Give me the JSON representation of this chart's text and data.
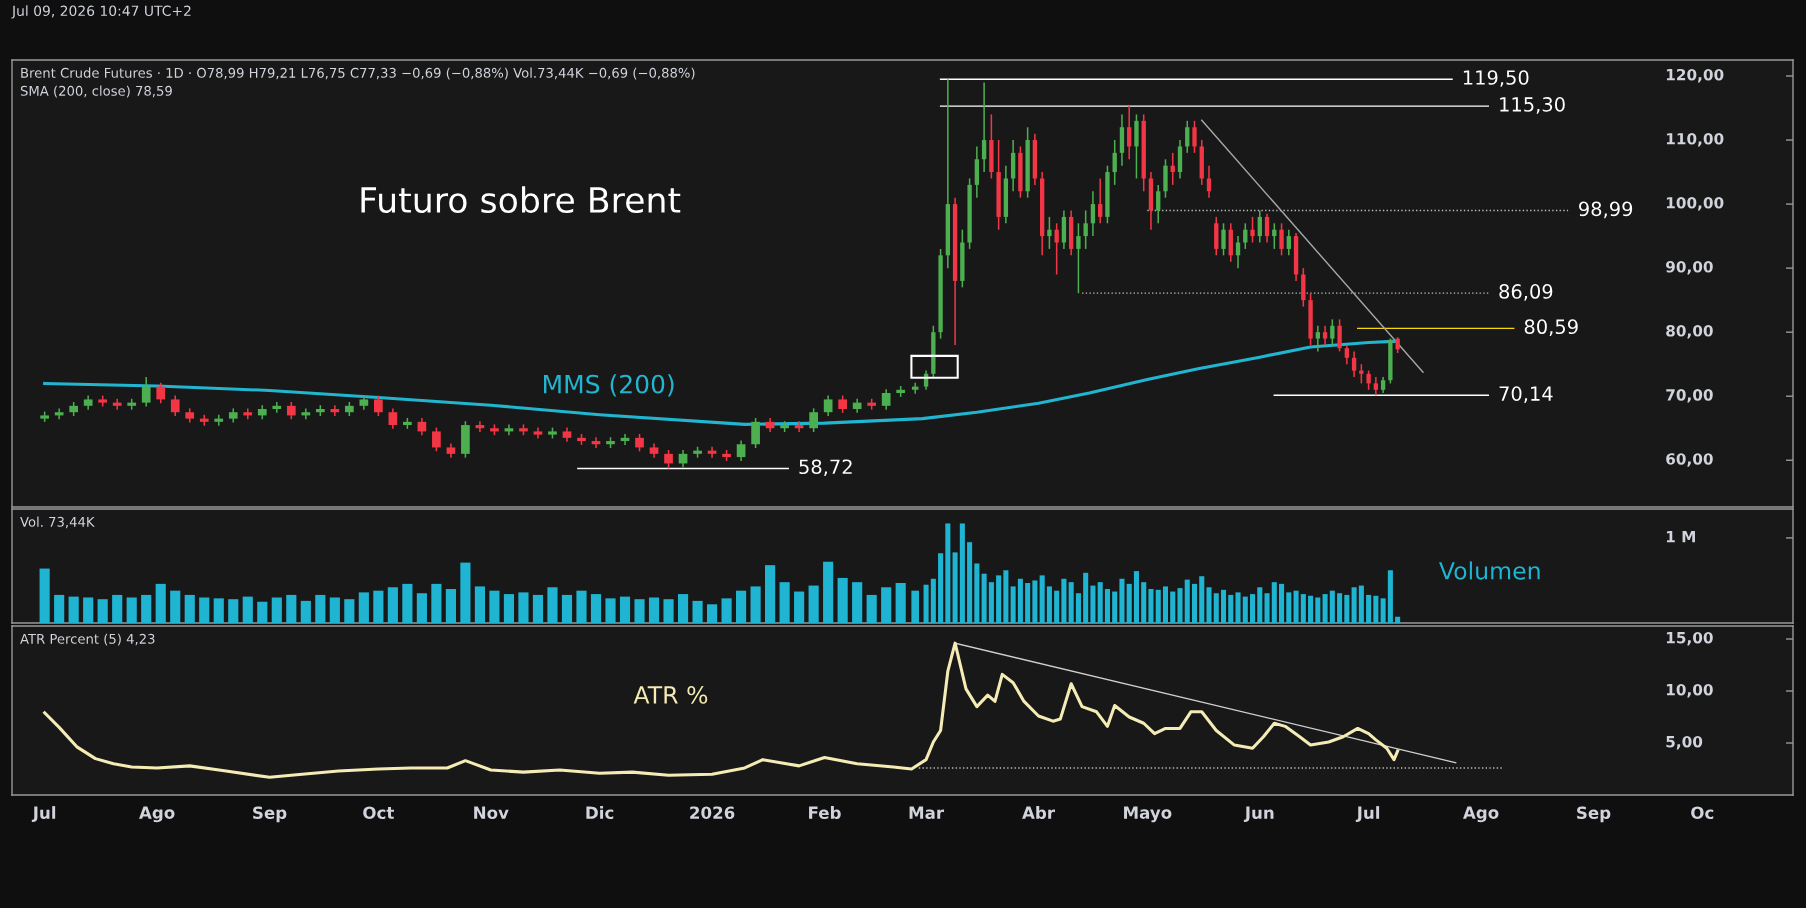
{
  "chart_data": [
    {
      "type": "candlestick",
      "title": "Futuro sobre Brent",
      "subtitle": "Jul 09, 2026 10:47 UTC+2",
      "x": [
        "2025-07-01",
        "2025-07-05",
        "2025-07-09",
        "2025-07-13",
        "2025-07-17",
        "2025-07-21",
        "2025-07-25",
        "2025-07-29",
        "2025-08-02",
        "2025-08-06",
        "2025-08-10",
        "2025-08-14",
        "2025-08-18",
        "2025-08-22",
        "2025-08-26",
        "2025-08-30",
        "2025-09-03",
        "2025-09-07",
        "2025-09-11",
        "2025-09-15",
        "2025-09-19",
        "2025-09-23",
        "2025-09-27",
        "2025-10-01",
        "2025-10-05",
        "2025-10-09",
        "2025-10-13",
        "2025-10-17",
        "2025-10-21",
        "2025-10-25",
        "2025-10-29",
        "2025-11-02",
        "2025-11-06",
        "2025-11-10",
        "2025-11-14",
        "2025-11-18",
        "2025-11-22",
        "2025-11-26",
        "2025-11-30",
        "2025-12-04",
        "2025-12-08",
        "2025-12-12",
        "2025-12-16",
        "2025-12-20",
        "2025-12-24",
        "2025-12-28",
        "2026-01-01",
        "2026-01-05",
        "2026-01-09",
        "2026-01-13",
        "2026-01-17",
        "2026-01-21",
        "2026-01-25",
        "2026-01-29",
        "2026-02-02",
        "2026-02-06",
        "2026-02-10",
        "2026-02-14",
        "2026-02-18",
        "2026-02-22",
        "2026-02-26",
        "2026-03-01",
        "2026-03-03",
        "2026-03-05",
        "2026-03-07",
        "2026-03-09",
        "2026-03-11",
        "2026-03-13",
        "2026-03-15",
        "2026-03-17",
        "2026-03-19",
        "2026-03-21",
        "2026-03-23",
        "2026-03-25",
        "2026-03-27",
        "2026-03-29",
        "2026-03-31",
        "2026-04-02",
        "2026-04-04",
        "2026-04-06",
        "2026-04-08",
        "2026-04-10",
        "2026-04-12",
        "2026-04-14",
        "2026-04-16",
        "2026-04-18",
        "2026-04-20",
        "2026-04-22",
        "2026-04-24",
        "2026-04-26",
        "2026-04-28",
        "2026-04-30",
        "2026-05-02",
        "2026-05-04",
        "2026-05-06",
        "2026-05-08",
        "2026-05-10",
        "2026-05-12",
        "2026-05-14",
        "2026-05-16",
        "2026-05-18",
        "2026-05-20",
        "2026-05-22",
        "2026-05-24",
        "2026-05-26",
        "2026-05-28",
        "2026-05-30",
        "2026-06-01",
        "2026-06-03",
        "2026-06-05",
        "2026-06-07",
        "2026-06-09",
        "2026-06-11",
        "2026-06-13",
        "2026-06-15",
        "2026-06-17",
        "2026-06-19",
        "2026-06-21",
        "2026-06-23",
        "2026-06-25",
        "2026-06-27",
        "2026-06-29",
        "2026-07-01",
        "2026-07-03",
        "2026-07-05",
        "2026-07-07",
        "2026-07-09"
      ],
      "ohlc": [
        [
          66.5,
          67.6,
          66.0,
          67.0
        ],
        [
          67.0,
          68.1,
          66.4,
          67.5
        ],
        [
          67.5,
          69.1,
          66.9,
          68.5
        ],
        [
          68.5,
          70.1,
          67.9,
          69.5
        ],
        [
          69.5,
          70.1,
          68.4,
          69.0
        ],
        [
          69.0,
          69.6,
          67.9,
          68.5
        ],
        [
          68.5,
          69.6,
          67.9,
          69.0
        ],
        [
          69.0,
          73.0,
          68.4,
          71.5
        ],
        [
          71.5,
          72.1,
          68.9,
          69.5
        ],
        [
          69.5,
          70.1,
          66.9,
          67.5
        ],
        [
          67.5,
          68.1,
          65.9,
          66.5
        ],
        [
          66.5,
          67.1,
          65.4,
          66.0
        ],
        [
          66.0,
          67.1,
          65.4,
          66.5
        ],
        [
          66.5,
          68.1,
          65.9,
          67.5
        ],
        [
          67.5,
          68.1,
          66.4,
          67.0
        ],
        [
          67.0,
          68.6,
          66.4,
          68.0
        ],
        [
          68.0,
          69.1,
          67.4,
          68.5
        ],
        [
          68.5,
          69.1,
          66.4,
          67.0
        ],
        [
          67.0,
          68.1,
          66.4,
          67.5
        ],
        [
          67.5,
          68.6,
          66.9,
          68.0
        ],
        [
          68.0,
          68.6,
          66.9,
          67.5
        ],
        [
          67.5,
          69.1,
          66.9,
          68.5
        ],
        [
          68.5,
          70.1,
          67.9,
          69.5
        ],
        [
          69.5,
          70.1,
          66.9,
          67.5
        ],
        [
          67.5,
          68.1,
          64.9,
          65.5
        ],
        [
          65.5,
          66.6,
          64.9,
          66.0
        ],
        [
          66.0,
          66.6,
          63.9,
          64.5
        ],
        [
          64.5,
          65.1,
          61.4,
          62.0
        ],
        [
          62.0,
          62.6,
          60.4,
          61.0
        ],
        [
          61.0,
          66.1,
          60.4,
          65.5
        ],
        [
          65.5,
          66.1,
          64.4,
          65.0
        ],
        [
          65.0,
          65.6,
          63.9,
          64.5
        ],
        [
          64.5,
          65.6,
          63.9,
          65.0
        ],
        [
          65.0,
          65.6,
          63.9,
          64.5
        ],
        [
          64.5,
          65.1,
          63.4,
          64.0
        ],
        [
          64.0,
          65.1,
          63.4,
          64.5
        ],
        [
          64.5,
          65.1,
          62.9,
          63.5
        ],
        [
          63.5,
          64.1,
          62.4,
          63.0
        ],
        [
          63.0,
          63.6,
          61.9,
          62.5
        ],
        [
          62.5,
          63.6,
          61.9,
          63.0
        ],
        [
          63.0,
          64.1,
          62.4,
          63.5
        ],
        [
          63.5,
          64.1,
          61.4,
          62.0
        ],
        [
          62.0,
          62.6,
          60.4,
          61.0
        ],
        [
          61.0,
          61.6,
          58.72,
          59.5
        ],
        [
          59.5,
          61.6,
          58.9,
          61.0
        ],
        [
          61.0,
          62.1,
          60.4,
          61.5
        ],
        [
          61.5,
          62.1,
          60.4,
          61.0
        ],
        [
          61.0,
          61.6,
          59.9,
          60.5
        ],
        [
          60.5,
          63.1,
          59.9,
          62.5
        ],
        [
          62.5,
          66.6,
          61.9,
          66.0
        ],
        [
          66.0,
          66.6,
          64.4,
          65.0
        ],
        [
          65.0,
          66.1,
          64.4,
          65.5
        ],
        [
          65.5,
          66.1,
          64.4,
          65.0
        ],
        [
          65.0,
          68.1,
          64.4,
          67.5
        ],
        [
          67.5,
          70.1,
          66.9,
          69.5
        ],
        [
          69.5,
          70.1,
          67.4,
          68.0
        ],
        [
          68.0,
          69.6,
          67.4,
          69.0
        ],
        [
          69.0,
          69.6,
          67.9,
          68.5
        ],
        [
          68.5,
          71.1,
          67.9,
          70.5
        ],
        [
          70.5,
          71.6,
          69.9,
          71.0
        ],
        [
          71.0,
          72.1,
          70.4,
          71.5
        ],
        [
          71.5,
          74,
          71,
          73.5
        ],
        [
          73.5,
          81,
          73,
          80
        ],
        [
          80,
          93,
          79,
          92
        ],
        [
          92,
          119.5,
          90,
          100
        ],
        [
          100,
          101,
          78,
          88
        ],
        [
          88,
          96,
          87,
          94
        ],
        [
          94,
          104,
          93,
          103
        ],
        [
          103,
          109,
          101,
          107
        ],
        [
          107,
          119,
          105,
          110
        ],
        [
          110,
          114,
          104,
          105
        ],
        [
          105,
          110,
          96,
          98
        ],
        [
          98,
          106,
          97,
          104
        ],
        [
          104,
          110,
          102,
          108
        ],
        [
          108,
          109,
          101,
          102
        ],
        [
          102,
          112,
          101,
          110
        ],
        [
          110,
          111,
          103,
          104
        ],
        [
          104,
          105,
          92,
          95
        ],
        [
          95,
          98,
          93,
          96
        ],
        [
          96,
          97,
          89,
          94
        ],
        [
          94,
          99,
          93,
          98
        ],
        [
          98,
          99,
          92,
          93
        ],
        [
          93,
          97,
          86.09,
          95
        ],
        [
          95,
          99,
          93,
          97
        ],
        [
          97,
          102,
          95,
          100
        ],
        [
          100,
          104,
          97,
          98
        ],
        [
          98,
          106,
          97,
          105
        ],
        [
          105,
          110,
          103,
          108
        ],
        [
          108,
          114,
          106,
          112
        ],
        [
          112,
          115.3,
          107,
          109
        ],
        [
          109,
          114,
          104,
          113
        ],
        [
          113,
          114,
          102,
          104
        ],
        [
          104,
          105,
          96,
          99
        ],
        [
          99,
          103,
          97,
          102
        ],
        [
          102,
          107,
          101,
          106
        ],
        [
          106,
          108,
          103,
          105
        ],
        [
          105,
          110,
          104,
          109
        ],
        [
          109,
          113,
          108,
          112
        ],
        [
          112,
          113,
          108,
          109
        ],
        [
          109,
          110,
          103,
          104
        ],
        [
          104,
          106,
          101,
          102
        ],
        [
          97,
          98,
          92,
          93
        ],
        [
          93,
          97,
          92,
          96
        ],
        [
          96,
          97,
          91,
          92
        ],
        [
          92,
          95,
          90,
          94
        ],
        [
          94,
          97,
          93,
          96
        ],
        [
          96,
          98,
          94,
          95
        ],
        [
          95,
          99,
          94,
          98
        ],
        [
          98,
          98.5,
          94,
          95
        ],
        [
          95,
          97,
          93,
          96
        ],
        [
          96,
          97,
          92,
          93
        ],
        [
          93,
          96,
          92,
          95
        ],
        [
          95,
          95.5,
          88,
          89
        ],
        [
          89,
          90,
          84,
          85
        ],
        [
          85,
          86,
          78,
          79
        ],
        [
          79,
          81,
          77,
          80
        ],
        [
          80,
          81,
          78,
          79
        ],
        [
          79,
          82,
          78,
          81
        ],
        [
          81,
          82,
          77,
          77.5
        ],
        [
          77.5,
          78,
          75,
          76
        ],
        [
          76,
          77,
          73,
          74
        ],
        [
          74,
          75,
          72,
          73.5
        ],
        [
          73.5,
          74,
          71,
          72
        ],
        [
          72,
          73,
          70.14,
          71
        ],
        [
          71,
          73,
          70.5,
          72.5
        ],
        [
          72.5,
          79,
          72,
          78.8
        ],
        [
          78.99,
          79.21,
          76.75,
          77.33
        ]
      ],
      "series": [
        {
          "type": "line",
          "name": "MMS (200)",
          "color": "#22b5d0",
          "x": [
            "2025-07-01",
            "2025-08-01",
            "2025-09-01",
            "2025-10-01",
            "2025-11-01",
            "2025-12-01",
            "2026-01-10",
            "2026-02-01",
            "2026-02-28",
            "2026-03-15",
            "2026-04-01",
            "2026-04-15",
            "2026-05-01",
            "2026-05-15",
            "2026-06-01",
            "2026-06-15",
            "2026-07-01",
            "2026-07-09"
          ],
          "values": [
            72.0,
            71.6,
            70.9,
            69.8,
            68.6,
            67.1,
            65.6,
            65.8,
            66.5,
            67.5,
            68.9,
            70.5,
            72.6,
            74.3,
            76.1,
            77.7,
            78.4,
            78.59
          ]
        },
        {
          "type": "line",
          "color": "#ffffff",
          "x": [
            "2026-03-05",
            "2026-07-24"
          ],
          "values": [
            119.5,
            119.5
          ]
        },
        {
          "type": "line",
          "color": "#ffffff",
          "x": [
            "2026-03-05",
            "2026-08-03"
          ],
          "values": [
            115.3,
            115.3
          ]
        },
        {
          "type": "line",
          "color": "#bbbbbb",
          "line_style": "dotted",
          "x": [
            "2026-05-01",
            "2026-08-25"
          ],
          "values": [
            98.99,
            98.99
          ]
        },
        {
          "type": "line",
          "color": "#bbbbbb",
          "line_style": "dotted",
          "x": [
            "2026-04-13",
            "2026-08-03"
          ],
          "values": [
            86.09,
            86.09
          ]
        },
        {
          "type": "line",
          "color": "#f5d90a",
          "x": [
            "2026-06-28",
            "2026-08-10"
          ],
          "values": [
            80.59,
            80.59
          ]
        },
        {
          "type": "line",
          "color": "#ffffff",
          "x": [
            "2026-06-05",
            "2026-08-03"
          ],
          "values": [
            70.14,
            70.14
          ]
        },
        {
          "type": "line",
          "color": "#ffffff",
          "x": [
            "2025-11-25",
            "2026-01-22"
          ],
          "values": [
            58.72,
            58.72
          ]
        },
        {
          "type": "line",
          "color": "#a8a8a8",
          "x": [
            "2026-05-16",
            "2026-07-16"
          ],
          "values": [
            113.1,
            73.75
          ]
        }
      ],
      "annotations": [
        "Brent Crude Futures · 1D · O78,99 H79,21 L76,75 C77,33 −0,69 (−0,88%) Vol.73,44K −0,69 (−0,88%)",
        "SMA (200, close) 78,59",
        {
          "text": "119,50",
          "x": "2026-07-24",
          "y": 119.5
        },
        {
          "text": "115,30",
          "x": "2026-08-03",
          "y": 115.3
        },
        {
          "text": "98,99",
          "x": "2026-08-25",
          "y": 98.99
        },
        {
          "text": "86,09",
          "x": "2026-08-03",
          "y": 86.09
        },
        {
          "text": "80,59",
          "x": "2026-08-10",
          "y": 80.59
        },
        {
          "text": "70,14",
          "x": "2026-08-03",
          "y": 70.14
        },
        {
          "text": "58,72",
          "x": "2026-01-22",
          "y": 58.72
        }
      ],
      "xlim": [
        "2025-06-22",
        "2026-10-26"
      ],
      "ylim": [
        52.7,
        122.5
      ],
      "yticks": [
        {
          "value": 60,
          "label": "60,00"
        },
        {
          "value": 70,
          "label": "70,00"
        },
        {
          "value": 80,
          "label": "80,00"
        },
        {
          "value": 90,
          "label": "90,00"
        },
        {
          "value": 100,
          "label": "100,00"
        },
        {
          "value": 110,
          "label": "110,00"
        },
        {
          "value": 120,
          "label": "120,00"
        }
      ],
      "tick_labels": "y",
      "grid": false
    },
    {
      "type": "bar",
      "x": [
        "2025-07-01",
        "2025-07-05",
        "2025-07-09",
        "2025-07-13",
        "2025-07-17",
        "2025-07-21",
        "2025-07-25",
        "2025-07-29",
        "2025-08-02",
        "2025-08-06",
        "2025-08-10",
        "2025-08-14",
        "2025-08-18",
        "2025-08-22",
        "2025-08-26",
        "2025-08-30",
        "2025-09-03",
        "2025-09-07",
        "2025-09-11",
        "2025-09-15",
        "2025-09-19",
        "2025-09-23",
        "2025-09-27",
        "2025-10-01",
        "2025-10-05",
        "2025-10-09",
        "2025-10-13",
        "2025-10-17",
        "2025-10-21",
        "2025-10-25",
        "2025-10-29",
        "2025-11-02",
        "2025-11-06",
        "2025-11-10",
        "2025-11-14",
        "2025-11-18",
        "2025-11-22",
        "2025-11-26",
        "2025-11-30",
        "2025-12-04",
        "2025-12-08",
        "2025-12-12",
        "2025-12-16",
        "2025-12-20",
        "2025-12-24",
        "2025-12-28",
        "2026-01-01",
        "2026-01-05",
        "2026-01-09",
        "2026-01-13",
        "2026-01-17",
        "2026-01-21",
        "2026-01-25",
        "2026-01-29",
        "2026-02-02",
        "2026-02-06",
        "2026-02-10",
        "2026-02-14",
        "2026-02-18",
        "2026-02-22",
        "2026-02-26",
        "2026-03-01",
        "2026-03-03",
        "2026-03-05",
        "2026-03-07",
        "2026-03-09",
        "2026-03-11",
        "2026-03-13",
        "2026-03-15",
        "2026-03-17",
        "2026-03-19",
        "2026-03-21",
        "2026-03-23",
        "2026-03-25",
        "2026-03-27",
        "2026-03-29",
        "2026-03-31",
        "2026-04-02",
        "2026-04-04",
        "2026-04-06",
        "2026-04-08",
        "2026-04-10",
        "2026-04-12",
        "2026-04-14",
        "2026-04-16",
        "2026-04-18",
        "2026-04-20",
        "2026-04-22",
        "2026-04-24",
        "2026-04-26",
        "2026-04-28",
        "2026-04-30",
        "2026-05-02",
        "2026-05-04",
        "2026-05-06",
        "2026-05-08",
        "2026-05-10",
        "2026-05-12",
        "2026-05-14",
        "2026-05-16",
        "2026-05-18",
        "2026-05-20",
        "2026-05-22",
        "2026-05-24",
        "2026-05-26",
        "2026-05-28",
        "2026-05-30",
        "2026-06-01",
        "2026-06-03",
        "2026-06-05",
        "2026-06-07",
        "2026-06-09",
        "2026-06-11",
        "2026-06-13",
        "2026-06-15",
        "2026-06-17",
        "2026-06-19",
        "2026-06-21",
        "2026-06-23",
        "2026-06-25",
        "2026-06-27",
        "2026-06-29",
        "2026-07-01",
        "2026-07-03",
        "2026-07-05",
        "2026-07-07",
        "2026-07-09"
      ],
      "series": [
        {
          "name": "Volumen",
          "color": "#1fb4d2",
          "values": [
            640000,
            330000,
            310000,
            300000,
            280000,
            330000,
            300000,
            330000,
            460000,
            380000,
            330000,
            300000,
            290000,
            280000,
            310000,
            250000,
            300000,
            330000,
            260000,
            330000,
            300000,
            280000,
            360000,
            380000,
            420000,
            460000,
            350000,
            460000,
            400000,
            710000,
            430000,
            380000,
            340000,
            360000,
            330000,
            420000,
            330000,
            380000,
            340000,
            290000,
            310000,
            280000,
            300000,
            280000,
            340000,
            260000,
            220000,
            290000,
            380000,
            430000,
            680000,
            480000,
            370000,
            440000,
            720000,
            530000,
            480000,
            330000,
            420000,
            470000,
            380000,
            450000,
            520000,
            820000,
            1170000,
            830000,
            1170000,
            950000,
            700000,
            580000,
            480000,
            560000,
            620000,
            430000,
            520000,
            470000,
            500000,
            560000,
            430000,
            380000,
            520000,
            480000,
            350000,
            590000,
            440000,
            480000,
            400000,
            370000,
            520000,
            460000,
            610000,
            480000,
            400000,
            390000,
            430000,
            370000,
            410000,
            510000,
            460000,
            550000,
            420000,
            350000,
            390000,
            330000,
            360000,
            310000,
            340000,
            420000,
            350000,
            480000,
            460000,
            360000,
            380000,
            340000,
            320000,
            300000,
            340000,
            380000,
            350000,
            330000,
            420000,
            440000,
            330000,
            320000,
            290000,
            620000,
            73440
          ]
        }
      ],
      "annotations": [
        "Vol. 73,44K"
      ],
      "xlim": [
        "2025-06-22",
        "2026-10-26"
      ],
      "ylim": [
        0,
        1340000
      ],
      "yticks": [
        {
          "value": 1000000,
          "label": "1 M"
        }
      ],
      "tick_labels": "y",
      "grid": false
    },
    {
      "type": "line",
      "series": [
        {
          "name": "ATR %",
          "color": "#f5ecb5",
          "x": [
            "2025-07-01",
            "2025-07-05",
            "2025-07-10",
            "2025-07-15",
            "2025-07-20",
            "2025-07-25",
            "2025-08-01",
            "2025-08-10",
            "2025-08-20",
            "2025-09-01",
            "2025-09-10",
            "2025-09-20",
            "2025-10-01",
            "2025-10-10",
            "2025-10-20",
            "2025-10-25",
            "2025-11-01",
            "2025-11-10",
            "2025-11-20",
            "2025-12-01",
            "2025-12-10",
            "2025-12-20",
            "2026-01-01",
            "2026-01-10",
            "2026-01-15",
            "2026-01-25",
            "2026-02-01",
            "2026-02-10",
            "2026-02-20",
            "2026-02-25",
            "2026-03-01",
            "2026-03-03",
            "2026-03-05",
            "2026-03-07",
            "2026-03-09",
            "2026-03-12",
            "2026-03-15",
            "2026-03-18",
            "2026-03-20",
            "2026-03-22",
            "2026-03-25",
            "2026-03-28",
            "2026-04-01",
            "2026-04-05",
            "2026-04-07",
            "2026-04-10",
            "2026-04-13",
            "2026-04-17",
            "2026-04-20",
            "2026-04-22",
            "2026-04-26",
            "2026-04-30",
            "2026-05-03",
            "2026-05-06",
            "2026-05-10",
            "2026-05-13",
            "2026-05-16",
            "2026-05-20",
            "2026-05-25",
            "2026-05-30",
            "2026-06-02",
            "2026-06-05",
            "2026-06-08",
            "2026-06-12",
            "2026-06-15",
            "2026-06-20",
            "2026-06-24",
            "2026-06-28",
            "2026-07-01",
            "2026-07-03",
            "2026-07-06",
            "2026-07-08",
            "2026-07-09"
          ],
          "values": [
            7.9,
            6.5,
            4.6,
            3.5,
            3.0,
            2.7,
            2.6,
            2.8,
            2.3,
            1.7,
            2.0,
            2.3,
            2.5,
            2.6,
            2.6,
            3.3,
            2.4,
            2.2,
            2.4,
            2.1,
            2.2,
            1.9,
            2.0,
            2.6,
            3.4,
            2.8,
            3.6,
            3.0,
            2.7,
            2.5,
            3.4,
            5.1,
            6.2,
            11.9,
            14.6,
            10.2,
            8.5,
            9.6,
            9.0,
            11.6,
            10.8,
            9.0,
            7.6,
            7.1,
            7.3,
            10.7,
            8.5,
            8.0,
            6.6,
            8.6,
            7.5,
            6.9,
            5.9,
            6.4,
            6.4,
            8.0,
            8.0,
            6.2,
            4.8,
            4.5,
            5.6,
            6.9,
            6.6,
            5.6,
            4.8,
            5.1,
            5.6,
            6.4,
            5.9,
            5.3,
            4.5,
            3.4,
            4.23
          ]
        },
        {
          "color": "#d0d0d0",
          "x": [
            "2026-03-09",
            "2026-07-25"
          ],
          "values": [
            14.6,
            3.1
          ]
        },
        {
          "color": "#bbbbbb",
          "line_style": "dotted",
          "x": [
            "2026-02-27",
            "2026-08-07"
          ],
          "values": [
            2.6,
            2.6
          ]
        }
      ],
      "annotations": [
        "ATR Percent (5) 4,23"
      ],
      "xlim": [
        "2025-06-22",
        "2026-10-26"
      ],
      "ylim": [
        0,
        16.25
      ],
      "xticks": [
        {
          "value": "2025-07-01",
          "label": "Jul"
        },
        {
          "value": "2025-08-01",
          "label": "Ago"
        },
        {
          "value": "2025-09-01",
          "label": "Sep"
        },
        {
          "value": "2025-10-01",
          "label": "Oct"
        },
        {
          "value": "2025-11-01",
          "label": "Nov"
        },
        {
          "value": "2025-12-01",
          "label": "Dic"
        },
        {
          "value": "2026-01-01",
          "label": "2026"
        },
        {
          "value": "2026-02-01",
          "label": "Feb"
        },
        {
          "value": "2026-03-01",
          "label": "Mar"
        },
        {
          "value": "2026-04-01",
          "label": "Abr"
        },
        {
          "value": "2026-05-01",
          "label": "Mayo"
        },
        {
          "value": "2026-06-01",
          "label": "Jun"
        },
        {
          "value": "2026-07-01",
          "label": "Jul"
        },
        {
          "value": "2026-08-01",
          "label": "Ago"
        },
        {
          "value": "2026-09-01",
          "label": "Sep"
        },
        {
          "value": "2026-10-01",
          "label": "Oc"
        }
      ],
      "yticks": [
        {
          "value": 5,
          "label": "5,00"
        },
        {
          "value": 10,
          "label": "10,00"
        },
        {
          "value": 15,
          "label": "15,00"
        }
      ],
      "grid": false
    }
  ]
}
